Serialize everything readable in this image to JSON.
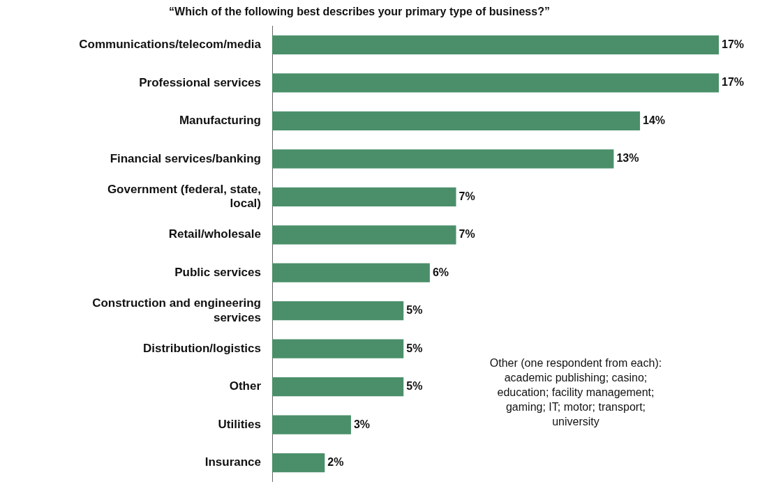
{
  "chart_data": {
    "type": "bar",
    "orientation": "horizontal",
    "title": "“Which of the following best describes your primary type of business?”",
    "categories": [
      "Communications/telecom/media",
      "Professional services",
      "Manufacturing",
      "Financial services/banking",
      "Government (federal, state, local)",
      "Retail/wholesale",
      "Public services",
      "Construction and engineering services",
      "Distribution/logistics",
      "Other",
      "Utilities",
      "Insurance"
    ],
    "values": [
      17,
      17,
      14,
      13,
      7,
      7,
      6,
      5,
      5,
      5,
      3,
      2
    ],
    "value_labels": [
      "17%",
      "17%",
      "14%",
      "13%",
      "7%",
      "7%",
      "6%",
      "5%",
      "5%",
      "5%",
      "3%",
      "2%"
    ],
    "color": "#4a8f6a",
    "xlim": [
      0,
      17
    ],
    "annotations": [
      "Other (one respondent from each): academic publishing; casino; education; facility management; gaming; IT; motor; transport; university"
    ],
    "grid": false,
    "legend": false
  }
}
